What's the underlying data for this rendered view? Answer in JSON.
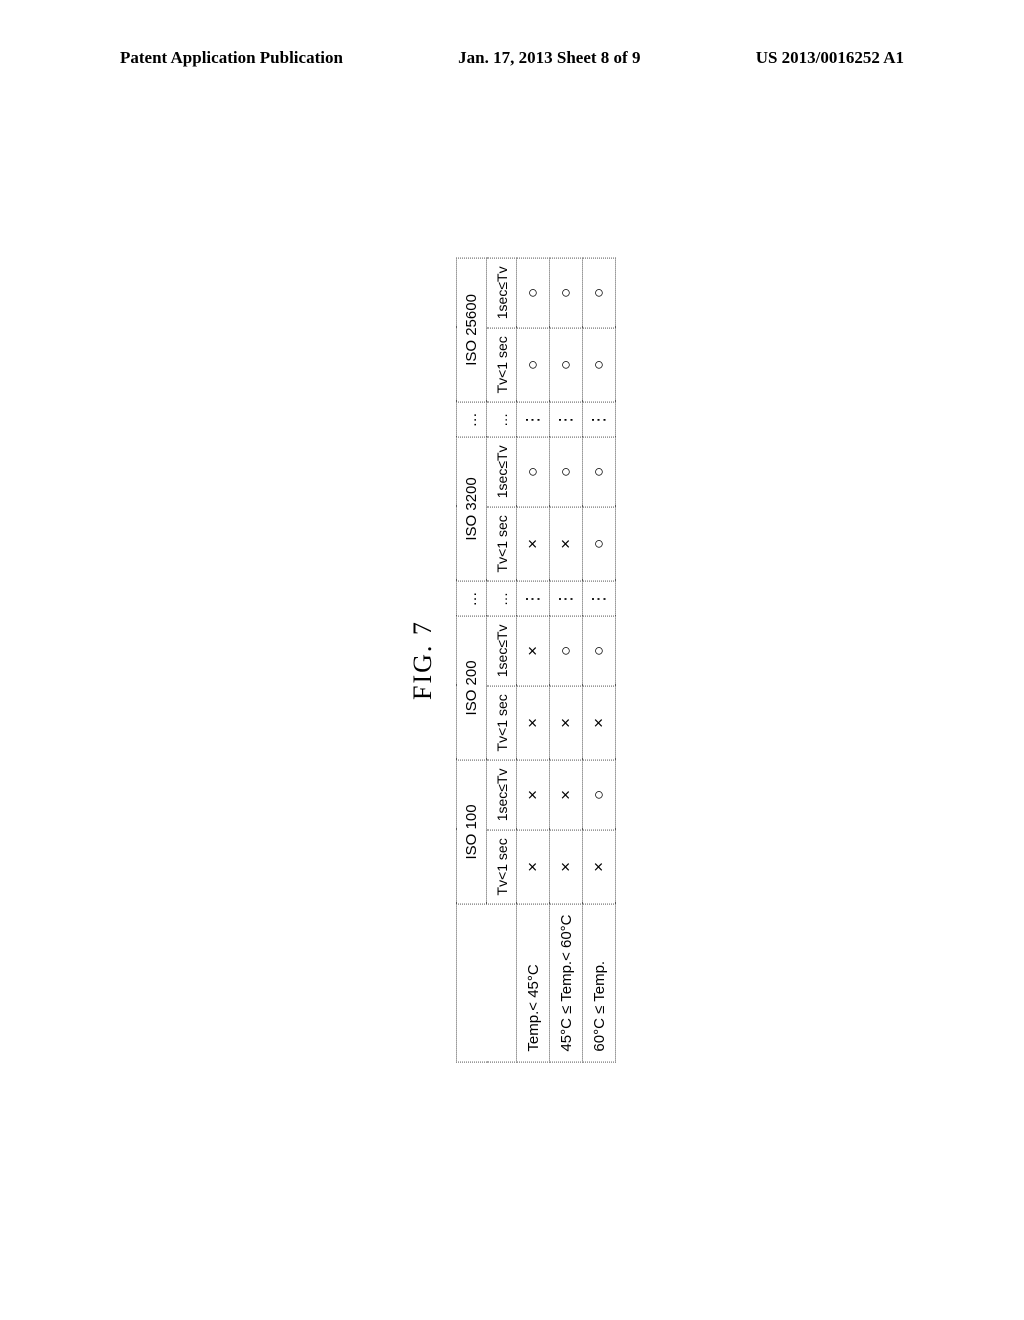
{
  "header": {
    "left": "Patent Application Publication",
    "center": "Jan. 17, 2013  Sheet 8 of 9",
    "right": "US 2013/0016252 A1"
  },
  "figure": {
    "label": "FIG. 7",
    "iso_groups": [
      {
        "label": "ISO 100",
        "cols": [
          "Tv<1 sec",
          "1sec≤Tv"
        ]
      },
      {
        "label": "ISO 200",
        "cols": [
          "Tv<1 sec",
          "1sec≤Tv"
        ]
      },
      {
        "label": "…",
        "cols": [
          "…"
        ]
      },
      {
        "label": "ISO 3200",
        "cols": [
          "Tv<1 sec",
          "1sec≤Tv"
        ]
      },
      {
        "label": "…",
        "cols": [
          "…"
        ]
      },
      {
        "label": "ISO 25600",
        "cols": [
          "Tv<1 sec",
          "1sec≤Tv"
        ]
      }
    ],
    "rows": [
      {
        "label": "Temp.< 45°C",
        "cells": [
          "×",
          "×",
          "×",
          "×",
          "⋮",
          "×",
          "○",
          "⋮",
          "○",
          "○"
        ]
      },
      {
        "label": "45°C ≤ Temp.< 60°C",
        "cells": [
          "×",
          "×",
          "×",
          "○",
          "⋮",
          "×",
          "○",
          "⋮",
          "○",
          "○"
        ]
      },
      {
        "label": "60°C ≤ Temp.",
        "cells": [
          "×",
          "○",
          "×",
          "○",
          "⋮",
          "○",
          "○",
          "⋮",
          "○",
          "○"
        ]
      }
    ],
    "symbols": {
      "cross": "×",
      "circle": "○",
      "vdots": "⋮",
      "hdots": "…"
    }
  }
}
